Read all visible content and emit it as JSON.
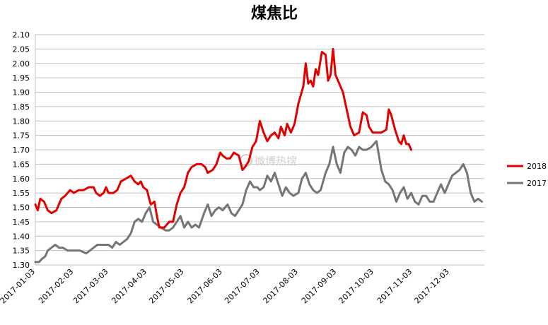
{
  "chart_data": {
    "type": "line",
    "title": "煤焦比",
    "xlabel": "",
    "ylabel": "",
    "x_ticks": [
      "2017-01-03",
      "2017-02-03",
      "2017-03-03",
      "2017-04-03",
      "2017-05-03",
      "2017-06-03",
      "2017-07-03",
      "2017-08-03",
      "2017-09-03",
      "2017-10-03",
      "2017-11-03",
      "2017-12-03"
    ],
    "y_ticks": [
      "1.30",
      "1.35",
      "1.40",
      "1.45",
      "1.50",
      "1.55",
      "1.60",
      "1.65",
      "1.70",
      "1.75",
      "1.80",
      "1.85",
      "1.90",
      "1.95",
      "2.00",
      "2.05",
      "2.10"
    ],
    "xlim": [
      "2017-01-03",
      "2017-12-31"
    ],
    "ylim": [
      1.3,
      2.1
    ],
    "grid": "horizontal",
    "legend_position": "right",
    "series": [
      {
        "name": "2018",
        "color": "#e00000",
        "points": [
          [
            "2017-01-03",
            1.51
          ],
          [
            "2017-01-05",
            1.49
          ],
          [
            "2017-01-07",
            1.53
          ],
          [
            "2017-01-10",
            1.52
          ],
          [
            "2017-01-13",
            1.49
          ],
          [
            "2017-01-16",
            1.48
          ],
          [
            "2017-01-20",
            1.49
          ],
          [
            "2017-01-24",
            1.53
          ],
          [
            "2017-01-27",
            1.54
          ],
          [
            "2017-01-31",
            1.56
          ],
          [
            "2017-02-03",
            1.55
          ],
          [
            "2017-02-07",
            1.56
          ],
          [
            "2017-02-11",
            1.56
          ],
          [
            "2017-02-15",
            1.57
          ],
          [
            "2017-02-19",
            1.57
          ],
          [
            "2017-02-21",
            1.55
          ],
          [
            "2017-02-24",
            1.54
          ],
          [
            "2017-02-27",
            1.55
          ],
          [
            "2017-03-01",
            1.57
          ],
          [
            "2017-03-03",
            1.55
          ],
          [
            "2017-03-07",
            1.55
          ],
          [
            "2017-03-10",
            1.56
          ],
          [
            "2017-03-13",
            1.59
          ],
          [
            "2017-03-17",
            1.6
          ],
          [
            "2017-03-21",
            1.61
          ],
          [
            "2017-03-24",
            1.59
          ],
          [
            "2017-03-27",
            1.58
          ],
          [
            "2017-03-29",
            1.59
          ],
          [
            "2017-03-31",
            1.57
          ],
          [
            "2017-04-03",
            1.56
          ],
          [
            "2017-04-06",
            1.51
          ],
          [
            "2017-04-09",
            1.52
          ],
          [
            "2017-04-11",
            1.47
          ],
          [
            "2017-04-13",
            1.43
          ],
          [
            "2017-04-17",
            1.43
          ],
          [
            "2017-04-21",
            1.45
          ],
          [
            "2017-04-24",
            1.45
          ],
          [
            "2017-04-27",
            1.51
          ],
          [
            "2017-04-30",
            1.55
          ],
          [
            "2017-05-03",
            1.57
          ],
          [
            "2017-05-06",
            1.62
          ],
          [
            "2017-05-09",
            1.64
          ],
          [
            "2017-05-13",
            1.65
          ],
          [
            "2017-05-17",
            1.65
          ],
          [
            "2017-05-20",
            1.64
          ],
          [
            "2017-05-22",
            1.62
          ],
          [
            "2017-05-26",
            1.63
          ],
          [
            "2017-05-29",
            1.65
          ],
          [
            "2017-06-01",
            1.69
          ],
          [
            "2017-06-03",
            1.68
          ],
          [
            "2017-06-06",
            1.67
          ],
          [
            "2017-06-09",
            1.67
          ],
          [
            "2017-06-12",
            1.69
          ],
          [
            "2017-06-16",
            1.68
          ],
          [
            "2017-06-19",
            1.63
          ],
          [
            "2017-06-21",
            1.64
          ],
          [
            "2017-06-24",
            1.66
          ],
          [
            "2017-06-27",
            1.71
          ],
          [
            "2017-06-30",
            1.73
          ],
          [
            "2017-07-03",
            1.8
          ],
          [
            "2017-07-06",
            1.76
          ],
          [
            "2017-07-09",
            1.73
          ],
          [
            "2017-07-12",
            1.75
          ],
          [
            "2017-07-15",
            1.76
          ],
          [
            "2017-07-18",
            1.74
          ],
          [
            "2017-07-20",
            1.78
          ],
          [
            "2017-07-23",
            1.75
          ],
          [
            "2017-07-25",
            1.79
          ],
          [
            "2017-07-28",
            1.76
          ],
          [
            "2017-07-31",
            1.79
          ],
          [
            "2017-08-03",
            1.86
          ],
          [
            "2017-08-07",
            1.92
          ],
          [
            "2017-08-09",
            2.0
          ],
          [
            "2017-08-11",
            1.93
          ],
          [
            "2017-08-13",
            1.94
          ],
          [
            "2017-08-15",
            1.92
          ],
          [
            "2017-08-17",
            1.98
          ],
          [
            "2017-08-19",
            1.96
          ],
          [
            "2017-08-22",
            2.04
          ],
          [
            "2017-08-25",
            2.03
          ],
          [
            "2017-08-27",
            1.94
          ],
          [
            "2017-08-29",
            1.96
          ],
          [
            "2017-08-31",
            2.05
          ],
          [
            "2017-09-02",
            1.96
          ],
          [
            "2017-09-05",
            1.93
          ],
          [
            "2017-09-08",
            1.9
          ],
          [
            "2017-09-11",
            1.84
          ],
          [
            "2017-09-14",
            1.78
          ],
          [
            "2017-09-17",
            1.75
          ],
          [
            "2017-09-21",
            1.76
          ],
          [
            "2017-09-24",
            1.83
          ],
          [
            "2017-09-27",
            1.82
          ],
          [
            "2017-09-29",
            1.78
          ],
          [
            "2017-10-02",
            1.76
          ],
          [
            "2017-10-05",
            1.76
          ],
          [
            "2017-10-09",
            1.76
          ],
          [
            "2017-10-13",
            1.77
          ],
          [
            "2017-10-15",
            1.84
          ],
          [
            "2017-10-17",
            1.82
          ],
          [
            "2017-10-20",
            1.77
          ],
          [
            "2017-10-23",
            1.73
          ],
          [
            "2017-10-25",
            1.72
          ],
          [
            "2017-10-27",
            1.75
          ],
          [
            "2017-10-29",
            1.72
          ],
          [
            "2017-10-31",
            1.72
          ],
          [
            "2017-11-02",
            1.7
          ]
        ]
      },
      {
        "name": "2017",
        "color": "#757575",
        "points": [
          [
            "2017-01-03",
            1.31
          ],
          [
            "2017-01-06",
            1.31
          ],
          [
            "2017-01-08",
            1.32
          ],
          [
            "2017-01-11",
            1.33
          ],
          [
            "2017-01-13",
            1.35
          ],
          [
            "2017-01-16",
            1.36
          ],
          [
            "2017-01-19",
            1.37
          ],
          [
            "2017-01-22",
            1.36
          ],
          [
            "2017-01-25",
            1.36
          ],
          [
            "2017-01-29",
            1.35
          ],
          [
            "2017-02-03",
            1.35
          ],
          [
            "2017-02-08",
            1.35
          ],
          [
            "2017-02-13",
            1.34
          ],
          [
            "2017-02-16",
            1.35
          ],
          [
            "2017-02-19",
            1.36
          ],
          [
            "2017-02-22",
            1.37
          ],
          [
            "2017-02-25",
            1.37
          ],
          [
            "2017-02-28",
            1.37
          ],
          [
            "2017-03-03",
            1.37
          ],
          [
            "2017-03-06",
            1.36
          ],
          [
            "2017-03-09",
            1.38
          ],
          [
            "2017-03-12",
            1.37
          ],
          [
            "2017-03-15",
            1.38
          ],
          [
            "2017-03-18",
            1.39
          ],
          [
            "2017-03-21",
            1.41
          ],
          [
            "2017-03-24",
            1.45
          ],
          [
            "2017-03-27",
            1.46
          ],
          [
            "2017-03-30",
            1.45
          ],
          [
            "2017-04-02",
            1.48
          ],
          [
            "2017-04-05",
            1.5
          ],
          [
            "2017-04-08",
            1.45
          ],
          [
            "2017-04-11",
            1.44
          ],
          [
            "2017-04-14",
            1.43
          ],
          [
            "2017-04-18",
            1.42
          ],
          [
            "2017-04-21",
            1.42
          ],
          [
            "2017-04-24",
            1.43
          ],
          [
            "2017-04-27",
            1.45
          ],
          [
            "2017-04-30",
            1.47
          ],
          [
            "2017-05-03",
            1.43
          ],
          [
            "2017-05-06",
            1.45
          ],
          [
            "2017-05-09",
            1.43
          ],
          [
            "2017-05-12",
            1.44
          ],
          [
            "2017-05-15",
            1.43
          ],
          [
            "2017-05-19",
            1.48
          ],
          [
            "2017-05-22",
            1.51
          ],
          [
            "2017-05-25",
            1.47
          ],
          [
            "2017-05-28",
            1.49
          ],
          [
            "2017-05-31",
            1.5
          ],
          [
            "2017-06-03",
            1.49
          ],
          [
            "2017-06-07",
            1.51
          ],
          [
            "2017-06-10",
            1.48
          ],
          [
            "2017-06-13",
            1.47
          ],
          [
            "2017-06-16",
            1.49
          ],
          [
            "2017-06-19",
            1.51
          ],
          [
            "2017-06-22",
            1.56
          ],
          [
            "2017-06-25",
            1.59
          ],
          [
            "2017-06-28",
            1.57
          ],
          [
            "2017-07-01",
            1.57
          ],
          [
            "2017-07-03",
            1.56
          ],
          [
            "2017-07-06",
            1.57
          ],
          [
            "2017-07-09",
            1.61
          ],
          [
            "2017-07-12",
            1.59
          ],
          [
            "2017-07-15",
            1.62
          ],
          [
            "2017-07-18",
            1.58
          ],
          [
            "2017-07-21",
            1.54
          ],
          [
            "2017-07-24",
            1.57
          ],
          [
            "2017-07-27",
            1.55
          ],
          [
            "2017-07-30",
            1.54
          ],
          [
            "2017-08-03",
            1.55
          ],
          [
            "2017-08-06",
            1.6
          ],
          [
            "2017-08-09",
            1.62
          ],
          [
            "2017-08-12",
            1.58
          ],
          [
            "2017-08-15",
            1.56
          ],
          [
            "2017-08-18",
            1.55
          ],
          [
            "2017-08-21",
            1.56
          ],
          [
            "2017-08-25",
            1.62
          ],
          [
            "2017-08-28",
            1.65
          ],
          [
            "2017-08-31",
            1.71
          ],
          [
            "2017-09-03",
            1.65
          ],
          [
            "2017-09-06",
            1.62
          ],
          [
            "2017-09-09",
            1.69
          ],
          [
            "2017-09-12",
            1.71
          ],
          [
            "2017-09-15",
            1.7
          ],
          [
            "2017-09-18",
            1.68
          ],
          [
            "2017-09-21",
            1.71
          ],
          [
            "2017-09-24",
            1.7
          ],
          [
            "2017-09-27",
            1.7
          ],
          [
            "2017-10-01",
            1.71
          ],
          [
            "2017-10-05",
            1.73
          ],
          [
            "2017-10-09",
            1.63
          ],
          [
            "2017-10-12",
            1.59
          ],
          [
            "2017-10-15",
            1.58
          ],
          [
            "2017-10-18",
            1.56
          ],
          [
            "2017-10-21",
            1.52
          ],
          [
            "2017-10-24",
            1.55
          ],
          [
            "2017-10-27",
            1.57
          ],
          [
            "2017-10-30",
            1.53
          ],
          [
            "2017-11-02",
            1.55
          ],
          [
            "2017-11-05",
            1.52
          ],
          [
            "2017-11-08",
            1.51
          ],
          [
            "2017-11-11",
            1.54
          ],
          [
            "2017-11-14",
            1.54
          ],
          [
            "2017-11-17",
            1.52
          ],
          [
            "2017-11-20",
            1.52
          ],
          [
            "2017-11-23",
            1.55
          ],
          [
            "2017-11-26",
            1.58
          ],
          [
            "2017-11-29",
            1.55
          ],
          [
            "2017-12-02",
            1.58
          ],
          [
            "2017-12-05",
            1.61
          ],
          [
            "2017-12-08",
            1.62
          ],
          [
            "2017-12-11",
            1.63
          ],
          [
            "2017-12-14",
            1.65
          ],
          [
            "2017-12-17",
            1.62
          ],
          [
            "2017-12-20",
            1.55
          ],
          [
            "2017-12-23",
            1.52
          ],
          [
            "2017-12-26",
            1.53
          ],
          [
            "2017-12-29",
            1.52
          ]
        ]
      }
    ],
    "watermark": "微博热搜"
  }
}
